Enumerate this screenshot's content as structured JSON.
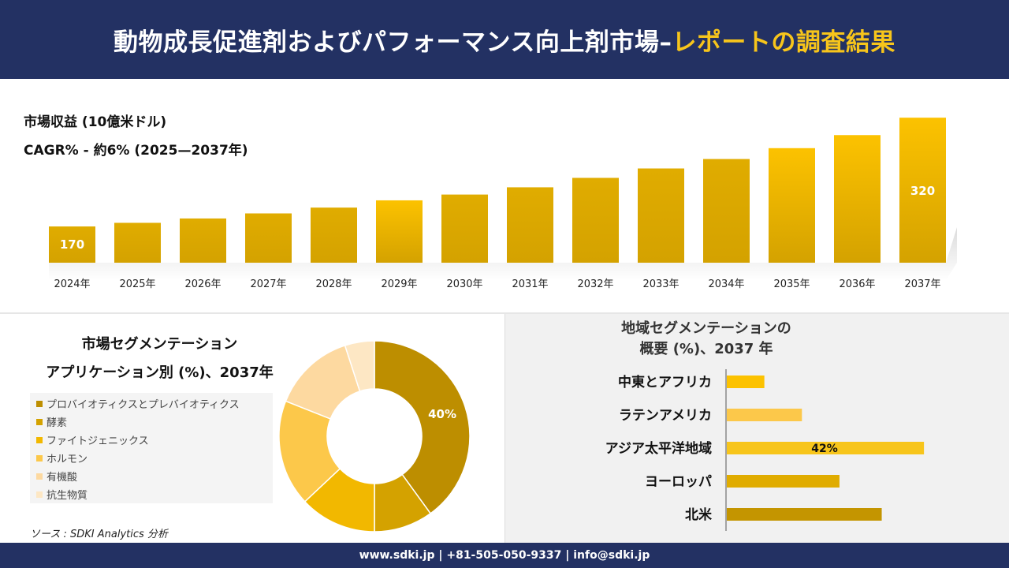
{
  "header": {
    "title_main": "動物成長促進剤およびパフォーマンス向上剤市場",
    "title_sep": "–",
    "title_accent": "レポートの調査結果"
  },
  "revenue": {
    "label": "市場収益 (10億米ドル)",
    "cagr": "CAGR% - 約6% (2025—2037年)"
  },
  "segmentation": {
    "title_line1": "市場セグメンテーション",
    "title_line2": "アプリケーション別 (%)、2037年"
  },
  "region": {
    "title_line1": "地域セグメンテーションの",
    "title_line2": "概要 (%)、2037 年"
  },
  "source": "ソース : SDKI Analytics 分析",
  "footer": {
    "contact": "www.sdki.jp | +81-505-050-9337 | info@sdki.jp"
  },
  "colors": {
    "header_bg": "#233163",
    "accent": "#f7c51b",
    "bar_dark": "#d4a200",
    "bar_bright": "#fcc200"
  },
  "chart_data": [
    {
      "type": "bar",
      "categories": [
        "2024年",
        "2025年",
        "2026年",
        "2027年",
        "2028年",
        "2029年",
        "2030年",
        "2031年",
        "2032年",
        "2033年",
        "2034年",
        "2035年",
        "2036年",
        "2037年"
      ],
      "values": [
        170,
        175,
        181,
        188,
        196,
        206,
        214,
        224,
        237,
        250,
        263,
        278,
        296,
        320
      ],
      "data_labels": [
        {
          "category": "2024年",
          "text": "170"
        },
        {
          "category": "2037年",
          "text": "320"
        }
      ],
      "ylim": [
        120,
        330
      ],
      "grid": false,
      "legend": false
    },
    {
      "type": "pie",
      "donut": true,
      "categories": [
        "プロバイオティクスとプレバイオティクス",
        "酵素",
        "ファイトジェニックス",
        "ホルモン",
        "有機酸",
        "抗生物質"
      ],
      "values": [
        40,
        10,
        13,
        18,
        14,
        5
      ],
      "colors": [
        "#bd8e00",
        "#d4a200",
        "#f2b800",
        "#fcc84a",
        "#fdd9a0",
        "#fde7c4"
      ],
      "data_labels": [
        {
          "category": "プロバイオティクスとプレバイオティクス",
          "text": "40%"
        }
      ],
      "legend": "left"
    },
    {
      "type": "bar",
      "orientation": "horizontal",
      "categories": [
        "中東とアフリカ",
        "ラテンアメリカ",
        "アジア太平洋地域",
        "ヨーロッパ",
        "北米"
      ],
      "values": [
        8,
        16,
        42,
        24,
        33
      ],
      "colors": [
        "#fcc200",
        "#fcc84a",
        "#f7c51b",
        "#e0ac00",
        "#c49500"
      ],
      "data_labels": [
        {
          "category": "アジア太平洋地域",
          "text": "42%"
        }
      ],
      "xlim": [
        0,
        45
      ],
      "grid": false,
      "legend": false
    }
  ]
}
